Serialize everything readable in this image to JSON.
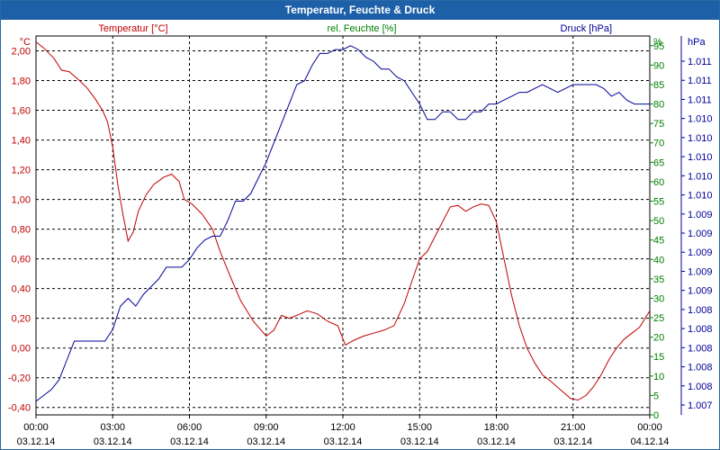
{
  "window": {
    "title": "Temperatur, Feuchte & Druck"
  },
  "colors": {
    "temperature": "#c00000",
    "humidity": "#008000",
    "pressure": "#000099",
    "grid": "#000000",
    "titlebar": "#1e60a8"
  },
  "chart_data": {
    "type": "line",
    "title": "Temperatur, Feuchte & Druck",
    "x": {
      "ticks": [
        {
          "time": "00:00",
          "date": "03.12.14"
        },
        {
          "time": "03:00",
          "date": "03.12.14"
        },
        {
          "time": "06:00",
          "date": "03.12.14"
        },
        {
          "time": "09:00",
          "date": "03.12.14"
        },
        {
          "time": "12:00",
          "date": "03.12.14"
        },
        {
          "time": "15:00",
          "date": "03.12.14"
        },
        {
          "time": "18:00",
          "date": "03.12.14"
        },
        {
          "time": "21:00",
          "date": "03.12.14"
        },
        {
          "time": "00:00",
          "date": "04.12.14"
        }
      ],
      "range_hours": [
        0,
        24
      ]
    },
    "temperature": {
      "name": "Temperatur [°C]",
      "unit": "°C",
      "ylim": [
        -0.45,
        2.1
      ],
      "tick_labels": [
        "-0,40",
        "-0,20",
        "0,00",
        "0,20",
        "0,40",
        "0,60",
        "0,80",
        "1,00",
        "1,20",
        "1,40",
        "1,60",
        "1,80",
        "2,00"
      ],
      "tick_values": [
        -0.4,
        -0.2,
        0.0,
        0.2,
        0.4,
        0.6,
        0.8,
        1.0,
        1.2,
        1.4,
        1.6,
        1.8,
        2.0
      ],
      "points": [
        [
          0,
          2.06
        ],
        [
          0.3,
          2.02
        ],
        [
          0.7,
          1.95
        ],
        [
          1.0,
          1.87
        ],
        [
          1.3,
          1.86
        ],
        [
          1.7,
          1.8
        ],
        [
          2.0,
          1.75
        ],
        [
          2.3,
          1.68
        ],
        [
          2.6,
          1.6
        ],
        [
          2.8,
          1.52
        ],
        [
          3.0,
          1.35
        ],
        [
          3.2,
          1.1
        ],
        [
          3.4,
          0.9
        ],
        [
          3.6,
          0.72
        ],
        [
          3.8,
          0.78
        ],
        [
          4.0,
          0.92
        ],
        [
          4.3,
          1.03
        ],
        [
          4.6,
          1.1
        ],
        [
          5.0,
          1.15
        ],
        [
          5.3,
          1.17
        ],
        [
          5.6,
          1.12
        ],
        [
          5.8,
          1.0
        ],
        [
          6.1,
          0.97
        ],
        [
          6.5,
          0.9
        ],
        [
          6.9,
          0.8
        ],
        [
          7.2,
          0.65
        ],
        [
          7.6,
          0.48
        ],
        [
          8.0,
          0.32
        ],
        [
          8.5,
          0.18
        ],
        [
          9.0,
          0.08
        ],
        [
          9.3,
          0.12
        ],
        [
          9.6,
          0.22
        ],
        [
          9.9,
          0.2
        ],
        [
          10.2,
          0.22
        ],
        [
          10.6,
          0.25
        ],
        [
          11.0,
          0.23
        ],
        [
          11.4,
          0.18
        ],
        [
          11.8,
          0.15
        ],
        [
          12.1,
          0.02
        ],
        [
          12.4,
          0.05
        ],
        [
          12.8,
          0.08
        ],
        [
          13.2,
          0.1
        ],
        [
          13.6,
          0.12
        ],
        [
          14.0,
          0.15
        ],
        [
          14.4,
          0.3
        ],
        [
          14.7,
          0.45
        ],
        [
          15.0,
          0.6
        ],
        [
          15.3,
          0.65
        ],
        [
          15.6,
          0.75
        ],
        [
          15.9,
          0.85
        ],
        [
          16.2,
          0.95
        ],
        [
          16.5,
          0.96
        ],
        [
          16.8,
          0.92
        ],
        [
          17.1,
          0.95
        ],
        [
          17.4,
          0.97
        ],
        [
          17.7,
          0.96
        ],
        [
          18.0,
          0.85
        ],
        [
          18.3,
          0.6
        ],
        [
          18.6,
          0.35
        ],
        [
          18.9,
          0.15
        ],
        [
          19.2,
          0.0
        ],
        [
          19.5,
          -0.1
        ],
        [
          19.8,
          -0.18
        ],
        [
          20.1,
          -0.22
        ],
        [
          20.5,
          -0.28
        ],
        [
          20.9,
          -0.34
        ],
        [
          21.2,
          -0.35
        ],
        [
          21.5,
          -0.32
        ],
        [
          21.8,
          -0.26
        ],
        [
          22.1,
          -0.18
        ],
        [
          22.4,
          -0.08
        ],
        [
          22.7,
          0.0
        ],
        [
          23.0,
          0.06
        ],
        [
          23.3,
          0.1
        ],
        [
          23.6,
          0.14
        ],
        [
          24.0,
          0.25
        ]
      ]
    },
    "humidity": {
      "name": "rel. Feuchte [%]",
      "unit": "%",
      "ylim": [
        0,
        97.5
      ],
      "tick_labels": [
        "0",
        "5",
        "10",
        "15",
        "20",
        "25",
        "30",
        "35",
        "40",
        "45",
        "50",
        "55",
        "60",
        "65",
        "70",
        "75",
        "80",
        "85",
        "90",
        "95"
      ],
      "tick_values": [
        0,
        5,
        10,
        15,
        20,
        25,
        30,
        35,
        40,
        45,
        50,
        55,
        60,
        65,
        70,
        75,
        80,
        85,
        90,
        95
      ]
    },
    "pressure": {
      "name": "Druck [hPa]",
      "unit": "hPa",
      "tick_labels": [
        "1.007",
        "1.008",
        "1.008",
        "1.008",
        "1.008",
        "1.008",
        "1.009",
        "1.009",
        "1.009",
        "1.009",
        "1.009",
        "1.010",
        "1.010",
        "1.010",
        "1.010",
        "1.010",
        "1.011",
        "1.011",
        "1.011"
      ],
      "points": [
        [
          0,
          3.5
        ],
        [
          0.3,
          5
        ],
        [
          0.6,
          6.5
        ],
        [
          0.9,
          9
        ],
        [
          1.2,
          14
        ],
        [
          1.5,
          19
        ],
        [
          1.8,
          19
        ],
        [
          2.1,
          19
        ],
        [
          2.4,
          19
        ],
        [
          2.7,
          19
        ],
        [
          3.0,
          22
        ],
        [
          3.3,
          28
        ],
        [
          3.6,
          30
        ],
        [
          3.9,
          28
        ],
        [
          4.2,
          31
        ],
        [
          4.5,
          33
        ],
        [
          4.8,
          35
        ],
        [
          5.1,
          38
        ],
        [
          5.4,
          38
        ],
        [
          5.7,
          38
        ],
        [
          6.0,
          40
        ],
        [
          6.3,
          43
        ],
        [
          6.6,
          45
        ],
        [
          6.9,
          46
        ],
        [
          7.2,
          46
        ],
        [
          7.5,
          50
        ],
        [
          7.8,
          55
        ],
        [
          8.1,
          55
        ],
        [
          8.4,
          57
        ],
        [
          8.7,
          61
        ],
        [
          9.0,
          65
        ],
        [
          9.3,
          70
        ],
        [
          9.6,
          75
        ],
        [
          9.9,
          80
        ],
        [
          10.2,
          85
        ],
        [
          10.5,
          86
        ],
        [
          10.8,
          90
        ],
        [
          11.1,
          93
        ],
        [
          11.4,
          93
        ],
        [
          11.7,
          94
        ],
        [
          12.0,
          94
        ],
        [
          12.3,
          95
        ],
        [
          12.6,
          94
        ],
        [
          12.9,
          92
        ],
        [
          13.2,
          91
        ],
        [
          13.5,
          89
        ],
        [
          13.8,
          89
        ],
        [
          14.1,
          87
        ],
        [
          14.4,
          86
        ],
        [
          14.7,
          83
        ],
        [
          15.0,
          80
        ],
        [
          15.3,
          76
        ],
        [
          15.6,
          76
        ],
        [
          15.9,
          78
        ],
        [
          16.2,
          78
        ],
        [
          16.5,
          76
        ],
        [
          16.8,
          76
        ],
        [
          17.1,
          78
        ],
        [
          17.4,
          78
        ],
        [
          17.7,
          80
        ],
        [
          18.0,
          80
        ],
        [
          18.3,
          81
        ],
        [
          18.6,
          82
        ],
        [
          18.9,
          83
        ],
        [
          19.2,
          83
        ],
        [
          19.5,
          84
        ],
        [
          19.8,
          85
        ],
        [
          20.1,
          84
        ],
        [
          20.4,
          83
        ],
        [
          20.7,
          84
        ],
        [
          21.0,
          85
        ],
        [
          21.3,
          85
        ],
        [
          21.6,
          85
        ],
        [
          21.9,
          85
        ],
        [
          22.2,
          84
        ],
        [
          22.5,
          82
        ],
        [
          22.8,
          83
        ],
        [
          23.1,
          81
        ],
        [
          23.4,
          80
        ],
        [
          23.7,
          80
        ],
        [
          24.0,
          80
        ]
      ]
    }
  }
}
